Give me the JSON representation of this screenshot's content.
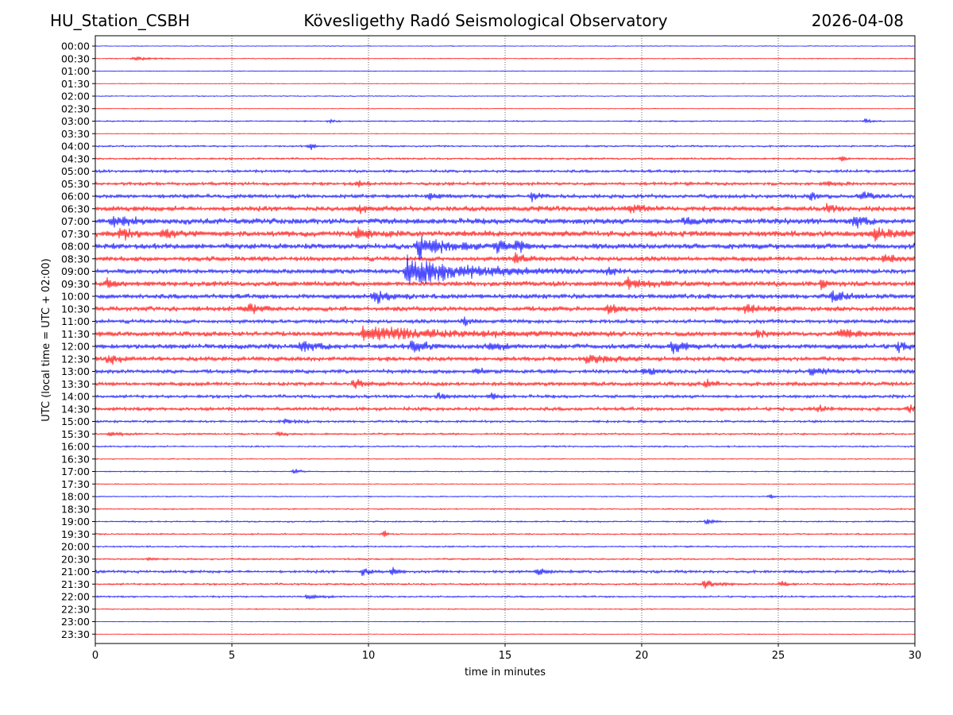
{
  "header": {
    "station": "HU_Station_CSBH",
    "observatory": "Kövesligethy Radó Seismological Observatory",
    "date": "2026-04-08"
  },
  "chart_data": {
    "type": "line",
    "title": "Kövesligethy Radó Seismological Observatory",
    "xlabel": "time in minutes",
    "ylabel": "UTC (local time = UTC + 02:00)",
    "xlim": [
      0,
      30
    ],
    "xticks": [
      0,
      5,
      10,
      15,
      20,
      25,
      30
    ],
    "vgrid": [
      5,
      10,
      15,
      20,
      25
    ],
    "colors": [
      "#0000ff",
      "#ff0000"
    ],
    "row_labels": [
      "00:00",
      "00:30",
      "01:00",
      "01:30",
      "02:00",
      "02:30",
      "03:00",
      "03:30",
      "04:00",
      "04:30",
      "05:00",
      "05:30",
      "06:00",
      "06:30",
      "07:00",
      "07:30",
      "08:00",
      "08:30",
      "09:00",
      "09:30",
      "10:00",
      "10:30",
      "11:00",
      "11:30",
      "12:00",
      "12:30",
      "13:00",
      "13:30",
      "14:00",
      "14:30",
      "15:00",
      "15:30",
      "16:00",
      "16:30",
      "17:00",
      "17:30",
      "18:00",
      "18:30",
      "19:00",
      "19:30",
      "20:00",
      "20:30",
      "21:00",
      "21:30",
      "22:00",
      "22:30",
      "23:00",
      "23:30"
    ],
    "noise_level": [
      0.4,
      0.5,
      0.4,
      0.4,
      0.5,
      0.4,
      0.7,
      0.4,
      0.9,
      1.0,
      1.4,
      1.6,
      2.0,
      2.6,
      3.0,
      3.0,
      2.8,
      2.4,
      2.4,
      2.6,
      2.4,
      2.4,
      2.0,
      2.4,
      2.6,
      2.2,
      2.0,
      2.0,
      1.6,
      1.8,
      1.2,
      1.0,
      0.8,
      0.6,
      0.6,
      0.5,
      0.6,
      0.7,
      0.8,
      0.8,
      0.8,
      0.9,
      1.4,
      1.0,
      0.9,
      0.6,
      0.4,
      0.4
    ],
    "events": [
      {
        "row": 1,
        "t": 1.4,
        "amp": 3,
        "dur": 0.6
      },
      {
        "row": 6,
        "t": 8.6,
        "amp": 3,
        "dur": 0.15
      },
      {
        "row": 6,
        "t": 28.2,
        "amp": 4,
        "dur": 0.2
      },
      {
        "row": 8,
        "t": 7.9,
        "amp": 5,
        "dur": 0.15
      },
      {
        "row": 9,
        "t": 27.3,
        "amp": 5,
        "dur": 0.2
      },
      {
        "row": 11,
        "t": 9.6,
        "amp": 5,
        "dur": 0.2
      },
      {
        "row": 11,
        "t": 26.8,
        "amp": 6,
        "dur": 0.3
      },
      {
        "row": 12,
        "t": 12.2,
        "amp": 6,
        "dur": 0.3
      },
      {
        "row": 12,
        "t": 16.0,
        "amp": 7,
        "dur": 0.2
      },
      {
        "row": 12,
        "t": 26.2,
        "amp": 6,
        "dur": 0.3
      },
      {
        "row": 12,
        "t": 28.0,
        "amp": 8,
        "dur": 0.3
      },
      {
        "row": 13,
        "t": 9.7,
        "amp": 6,
        "dur": 0.3
      },
      {
        "row": 13,
        "t": 19.6,
        "amp": 6,
        "dur": 0.4
      },
      {
        "row": 13,
        "t": 26.8,
        "amp": 6,
        "dur": 0.3
      },
      {
        "row": 14,
        "t": 0.6,
        "amp": 9,
        "dur": 0.6
      },
      {
        "row": 14,
        "t": 21.6,
        "amp": 8,
        "dur": 0.3
      },
      {
        "row": 14,
        "t": 27.8,
        "amp": 9,
        "dur": 0.3
      },
      {
        "row": 15,
        "t": 0.9,
        "amp": 8,
        "dur": 0.4
      },
      {
        "row": 15,
        "t": 2.5,
        "amp": 8,
        "dur": 0.4
      },
      {
        "row": 15,
        "t": 9.6,
        "amp": 8,
        "dur": 0.5
      },
      {
        "row": 15,
        "t": 28.5,
        "amp": 9,
        "dur": 0.8
      },
      {
        "row": 16,
        "t": 11.8,
        "amp": 18,
        "dur": 0.8
      },
      {
        "row": 16,
        "t": 14.7,
        "amp": 11,
        "dur": 0.4
      },
      {
        "row": 16,
        "t": 15.4,
        "amp": 9,
        "dur": 0.3
      },
      {
        "row": 17,
        "t": 15.4,
        "amp": 10,
        "dur": 0.3
      },
      {
        "row": 17,
        "t": 28.9,
        "amp": 8,
        "dur": 0.5
      },
      {
        "row": 18,
        "t": 11.4,
        "amp": 20,
        "dur": 2.2
      },
      {
        "row": 18,
        "t": 18.8,
        "amp": 9,
        "dur": 0.2
      },
      {
        "row": 19,
        "t": 0.4,
        "amp": 8,
        "dur": 0.2
      },
      {
        "row": 19,
        "t": 19.5,
        "amp": 7,
        "dur": 0.8
      },
      {
        "row": 19,
        "t": 26.6,
        "amp": 8,
        "dur": 0.2
      },
      {
        "row": 20,
        "t": 10.2,
        "amp": 11,
        "dur": 0.5
      },
      {
        "row": 20,
        "t": 27.0,
        "amp": 8,
        "dur": 0.5
      },
      {
        "row": 21,
        "t": 5.6,
        "amp": 8,
        "dur": 0.4
      },
      {
        "row": 21,
        "t": 18.8,
        "amp": 7,
        "dur": 0.4
      },
      {
        "row": 21,
        "t": 23.8,
        "amp": 7,
        "dur": 0.6
      },
      {
        "row": 22,
        "t": 13.5,
        "amp": 8,
        "dur": 0.2
      },
      {
        "row": 23,
        "t": 9.8,
        "amp": 10,
        "dur": 3.2
      },
      {
        "row": 23,
        "t": 24.2,
        "amp": 7,
        "dur": 0.3
      },
      {
        "row": 23,
        "t": 27.3,
        "amp": 8,
        "dur": 0.6
      },
      {
        "row": 24,
        "t": 7.5,
        "amp": 8,
        "dur": 0.5
      },
      {
        "row": 24,
        "t": 11.6,
        "amp": 11,
        "dur": 0.4
      },
      {
        "row": 24,
        "t": 14.5,
        "amp": 7,
        "dur": 0.4
      },
      {
        "row": 24,
        "t": 21.1,
        "amp": 10,
        "dur": 0.4
      },
      {
        "row": 24,
        "t": 29.4,
        "amp": 7,
        "dur": 0.3
      },
      {
        "row": 25,
        "t": 0.5,
        "amp": 8,
        "dur": 0.3
      },
      {
        "row": 25,
        "t": 18.0,
        "amp": 6,
        "dur": 1.0
      },
      {
        "row": 26,
        "t": 13.9,
        "amp": 6,
        "dur": 0.2
      },
      {
        "row": 26,
        "t": 20.1,
        "amp": 7,
        "dur": 0.4
      },
      {
        "row": 26,
        "t": 26.2,
        "amp": 6,
        "dur": 0.6
      },
      {
        "row": 27,
        "t": 9.5,
        "amp": 9,
        "dur": 0.3
      },
      {
        "row": 27,
        "t": 22.4,
        "amp": 7,
        "dur": 0.2
      },
      {
        "row": 28,
        "t": 12.6,
        "amp": 6,
        "dur": 0.3
      },
      {
        "row": 28,
        "t": 14.5,
        "amp": 6,
        "dur": 0.2
      },
      {
        "row": 29,
        "t": 26.5,
        "amp": 6,
        "dur": 0.2
      },
      {
        "row": 29,
        "t": 29.8,
        "amp": 6,
        "dur": 0.3
      },
      {
        "row": 30,
        "t": 7.0,
        "amp": 5,
        "dur": 0.3
      },
      {
        "row": 31,
        "t": 0.5,
        "amp": 4,
        "dur": 0.4
      },
      {
        "row": 31,
        "t": 6.7,
        "amp": 5,
        "dur": 0.2
      },
      {
        "row": 34,
        "t": 7.3,
        "amp": 5,
        "dur": 0.2
      },
      {
        "row": 36,
        "t": 24.7,
        "amp": 5,
        "dur": 0.1
      },
      {
        "row": 38,
        "t": 22.4,
        "amp": 5,
        "dur": 0.2
      },
      {
        "row": 39,
        "t": 10.6,
        "amp": 6,
        "dur": 0.1
      },
      {
        "row": 41,
        "t": 2.0,
        "amp": 4,
        "dur": 0.2
      },
      {
        "row": 42,
        "t": 9.8,
        "amp": 7,
        "dur": 0.3
      },
      {
        "row": 42,
        "t": 10.9,
        "amp": 6,
        "dur": 0.2
      },
      {
        "row": 42,
        "t": 16.2,
        "amp": 6,
        "dur": 0.3
      },
      {
        "row": 43,
        "t": 22.3,
        "amp": 6,
        "dur": 0.6
      },
      {
        "row": 43,
        "t": 25.1,
        "amp": 6,
        "dur": 0.2
      },
      {
        "row": 44,
        "t": 7.8,
        "amp": 4,
        "dur": 0.5
      }
    ]
  }
}
